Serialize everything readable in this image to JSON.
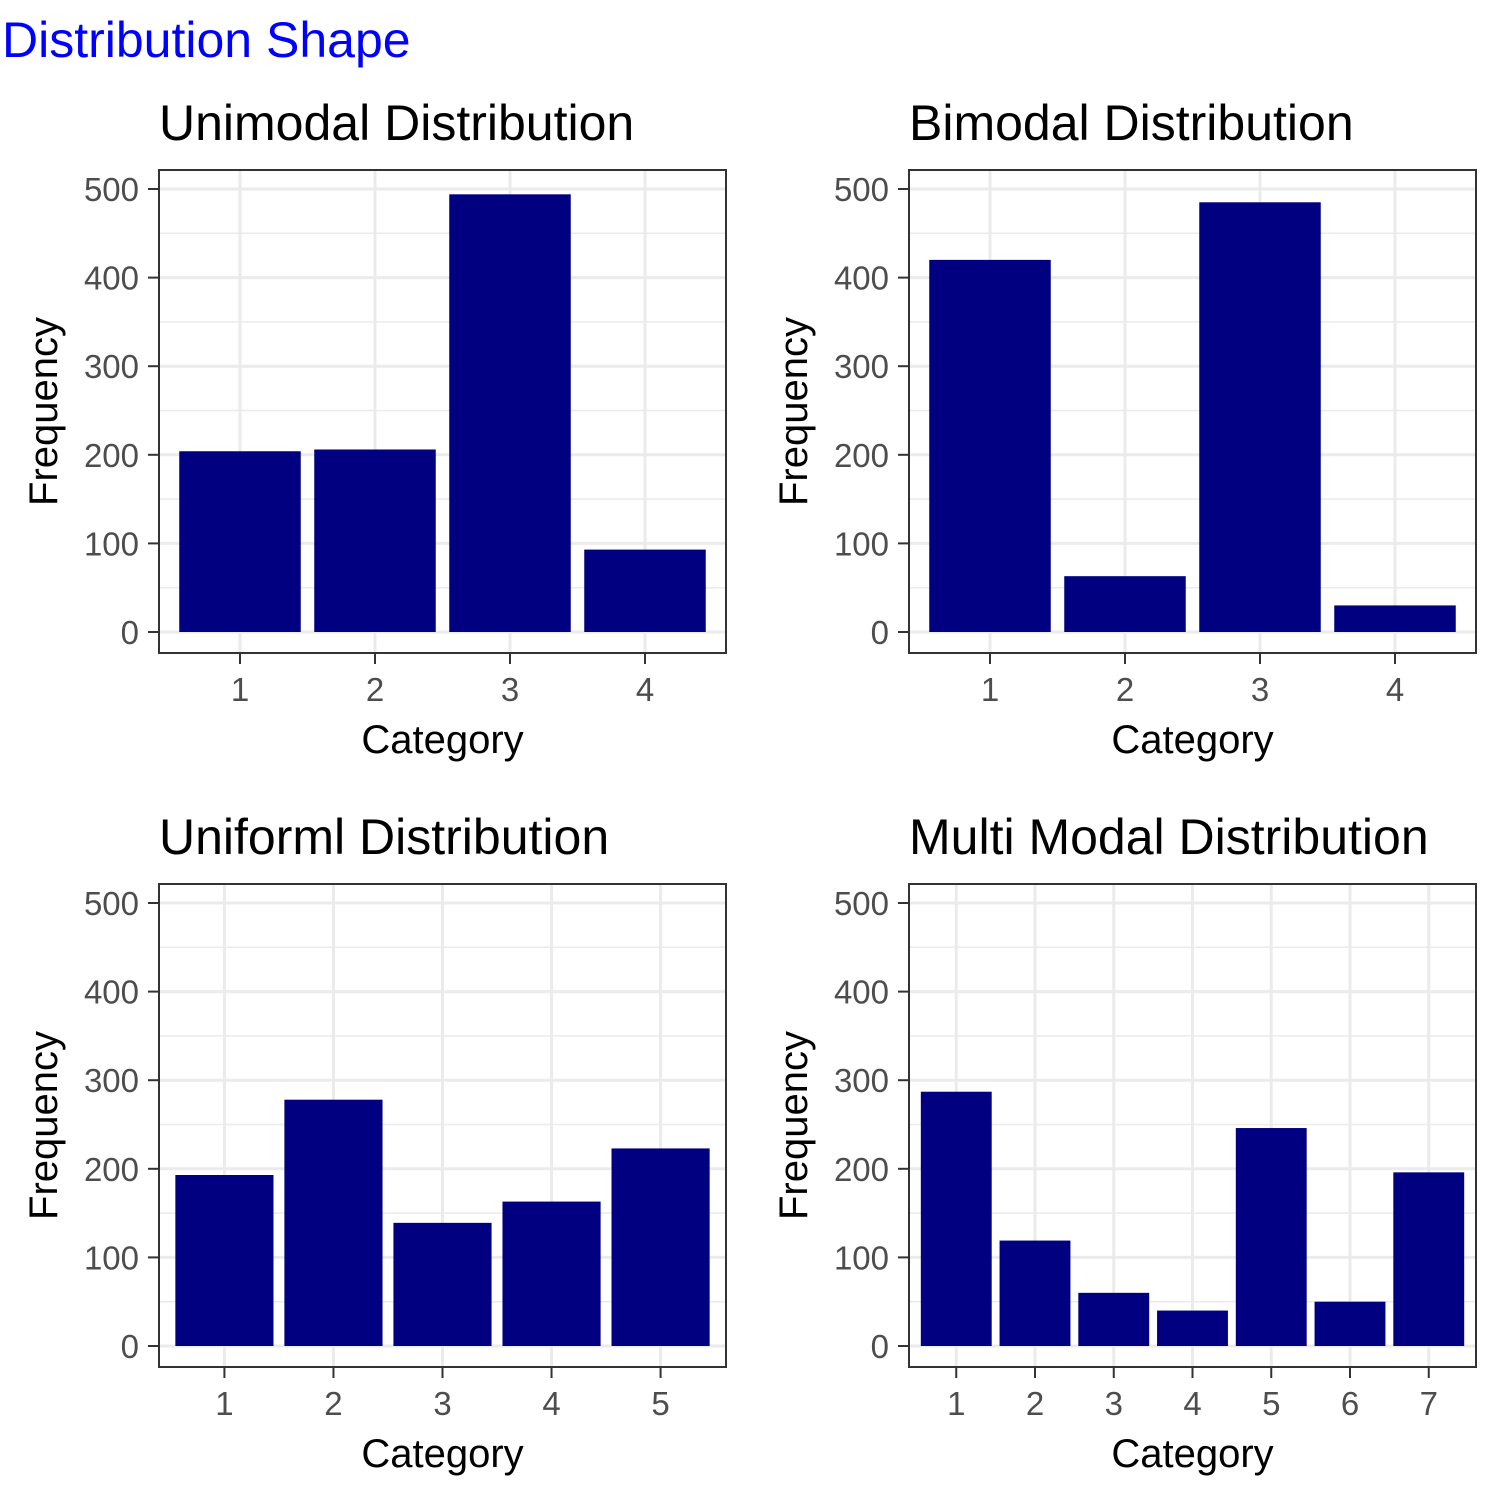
{
  "page": {
    "title": "Distribution Shape",
    "title_color": "#0000ff"
  },
  "colors": {
    "bar": "#000080",
    "grid": "#ebebeb",
    "border": "#333333",
    "tick_text": "#4d4d4d"
  },
  "chart_data": [
    {
      "type": "bar",
      "title": "Unimodal Distribution",
      "xlabel": "Category",
      "ylabel": "Frequency",
      "categories": [
        "1",
        "2",
        "3",
        "4"
      ],
      "values": [
        204,
        206,
        494,
        93
      ],
      "ylim": [
        0,
        500
      ],
      "yticks": [
        0,
        100,
        200,
        300,
        400,
        500
      ],
      "grid": true
    },
    {
      "type": "bar",
      "title": "Bimodal Distribution",
      "xlabel": "Category",
      "ylabel": "Frequency",
      "categories": [
        "1",
        "2",
        "3",
        "4"
      ],
      "values": [
        420,
        63,
        485,
        30
      ],
      "ylim": [
        0,
        500
      ],
      "yticks": [
        0,
        100,
        200,
        300,
        400,
        500
      ],
      "grid": true
    },
    {
      "type": "bar",
      "title": "Uniforml Distribution",
      "xlabel": "Category",
      "ylabel": "Frequency",
      "categories": [
        "1",
        "2",
        "3",
        "4",
        "5"
      ],
      "values": [
        193,
        278,
        139,
        163,
        223
      ],
      "ylim": [
        0,
        500
      ],
      "yticks": [
        0,
        100,
        200,
        300,
        400,
        500
      ],
      "grid": true
    },
    {
      "type": "bar",
      "title": "Multi Modal Distribution",
      "xlabel": "Category",
      "ylabel": "Frequency",
      "categories": [
        "1",
        "2",
        "3",
        "4",
        "5",
        "6",
        "7"
      ],
      "values": [
        287,
        119,
        60,
        40,
        246,
        50,
        196
      ],
      "ylim": [
        0,
        500
      ],
      "yticks": [
        0,
        100,
        200,
        300,
        400,
        500
      ],
      "grid": true
    }
  ]
}
